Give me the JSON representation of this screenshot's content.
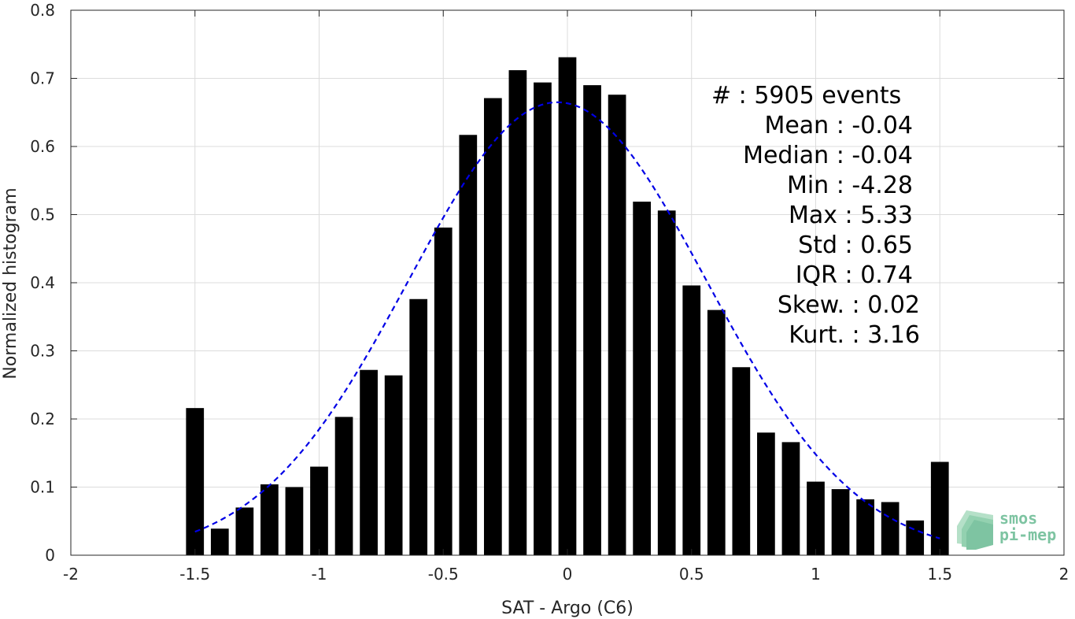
{
  "chart_data": {
    "type": "bar",
    "xlabel": "SAT - Argo (C6)",
    "ylabel": "Normalized histogram",
    "xlim": [
      -2,
      2
    ],
    "ylim": [
      0,
      0.8
    ],
    "xticks": [
      -2,
      -1.5,
      -1,
      -0.5,
      0,
      0.5,
      1,
      1.5,
      2
    ],
    "xtick_labels": [
      "-2",
      "-1.5",
      "-1",
      "-0.5",
      "0",
      "0.5",
      "1",
      "1.5",
      "2"
    ],
    "yticks": [
      0,
      0.1,
      0.2,
      0.3,
      0.4,
      0.5,
      0.6,
      0.7,
      0.8
    ],
    "ytick_labels": [
      "0",
      "0.1",
      "0.2",
      "0.3",
      "0.4",
      "0.5",
      "0.6",
      "0.7",
      "0.8"
    ],
    "grid": true,
    "bar_width": 0.072,
    "x": [
      -1.5,
      -1.4,
      -1.3,
      -1.2,
      -1.1,
      -1.0,
      -0.9,
      -0.8,
      -0.7,
      -0.6,
      -0.5,
      -0.4,
      -0.3,
      -0.2,
      -0.1,
      0.0,
      0.1,
      0.2,
      0.3,
      0.4,
      0.5,
      0.6,
      0.7,
      0.8,
      0.9,
      1.0,
      1.1,
      1.2,
      1.3,
      1.4,
      1.5
    ],
    "values": [
      0.216,
      0.039,
      0.07,
      0.104,
      0.1,
      0.13,
      0.203,
      0.272,
      0.264,
      0.376,
      0.481,
      0.617,
      0.671,
      0.712,
      0.694,
      0.731,
      0.69,
      0.676,
      0.519,
      0.506,
      0.396,
      0.36,
      0.276,
      0.18,
      0.166,
      0.108,
      0.097,
      0.082,
      0.078,
      0.051,
      0.137
    ],
    "fit_curve": {
      "type": "gaussian",
      "mean": -0.04,
      "std": 0.6,
      "xrange": [
        -1.5,
        1.5
      ],
      "color": "#0000e6"
    },
    "bar_color": "#000000",
    "annotations": [
      "#  : 5905 events",
      "Mean : -0.04",
      "Median : -0.04",
      "Min : -4.28",
      "Max : 5.33",
      "Std : 0.65",
      "IQR : 0.74",
      "Skew. : 0.02",
      "Kurt. : 3.16"
    ]
  },
  "logo": {
    "line1": "smos",
    "line2": "pi-mep",
    "color": "#7ec4a2"
  }
}
